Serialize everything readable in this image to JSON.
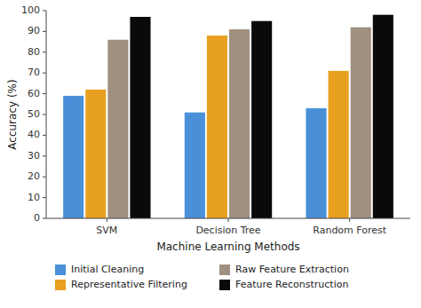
{
  "chart_data": {
    "type": "bar",
    "categories": [
      "SVM",
      "Decision Tree",
      "Random Forest"
    ],
    "series": [
      {
        "name": "Initial Cleaning",
        "color": "#4a90d9",
        "values": [
          59,
          51,
          53
        ]
      },
      {
        "name": "Representative Filtering",
        "color": "#e8a020",
        "values": [
          62,
          88,
          71
        ]
      },
      {
        "name": "Raw Feature Extraction",
        "color": "#a09080",
        "values": [
          86,
          91,
          92
        ]
      },
      {
        "name": "Feature Reconstruction",
        "color": "#0a0a0a",
        "values": [
          97,
          95,
          98
        ]
      }
    ],
    "xlabel": "Machine Learning Methods",
    "ylabel": "Accuracy (%)",
    "ylim": [
      0,
      100
    ],
    "yticks": [
      0,
      10,
      20,
      30,
      40,
      50,
      60,
      70,
      80,
      90,
      100
    ],
    "grid": false,
    "legend": "bottom"
  }
}
